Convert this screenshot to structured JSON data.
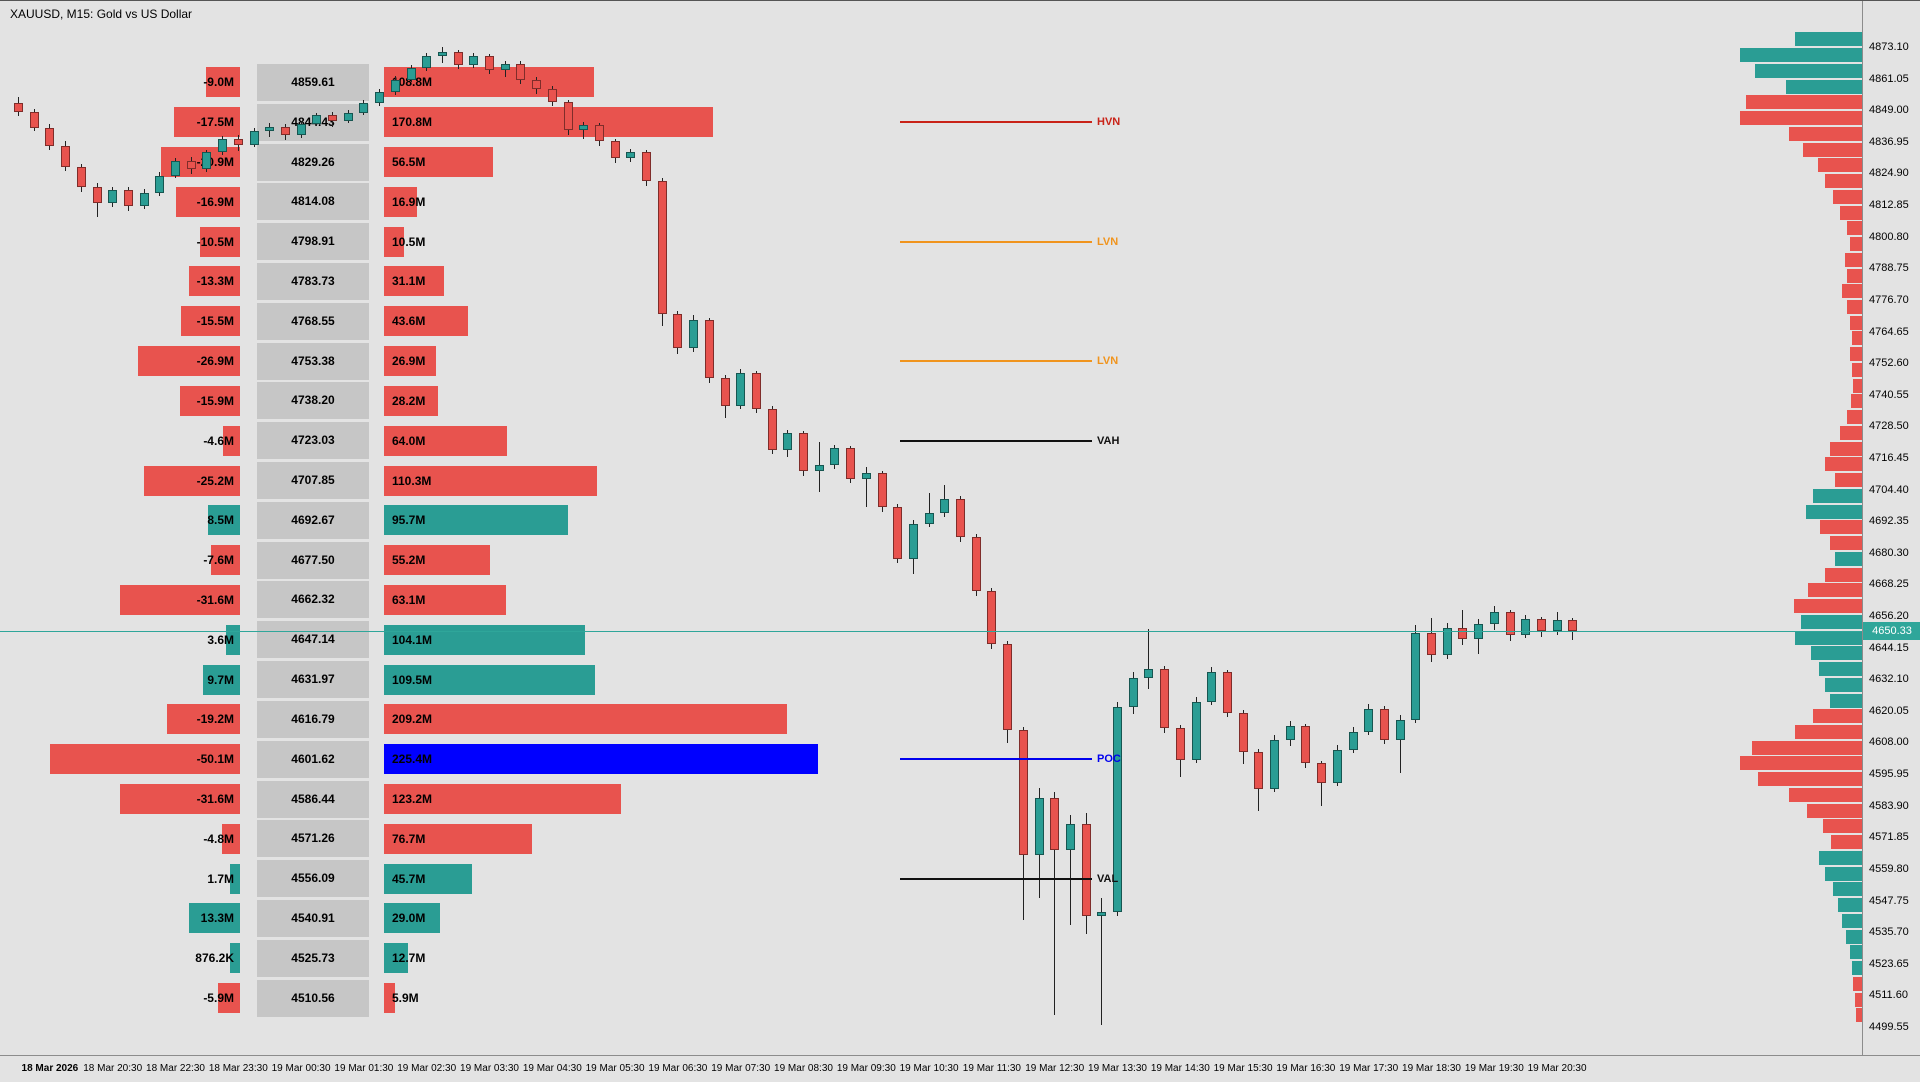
{
  "window": {
    "title": "XAUUSD, M15:  Gold vs US Dollar"
  },
  "colors": {
    "bull": "#2a9d94",
    "bear": "#e8534e",
    "wick": "#222222",
    "poc_bar": "#0000ff",
    "price_cell_bg": "#c6c6c6",
    "background": "#e3e3e3",
    "current_price": "#2fa69a"
  },
  "current_price": {
    "label": "4650.33",
    "value": 4650.33
  },
  "levels": [
    {
      "label": "HVN",
      "price": 4844.43,
      "color": "#c92318"
    },
    {
      "label": "LVN",
      "price": 4798.91,
      "color": "#f0941d"
    },
    {
      "label": "LVN",
      "price": 4753.38,
      "color": "#f0941d"
    },
    {
      "label": "VAH",
      "price": 4723.03,
      "color": "#111111"
    },
    {
      "label": "POC",
      "price": 4601.62,
      "color": "#0000ee"
    },
    {
      "label": "VAL",
      "price": 4556.09,
      "color": "#111111"
    }
  ],
  "price_axis": {
    "top_price": 4873.1,
    "bottom_price": 4499.55,
    "step": 12.05,
    "ticks": [
      "4873.10",
      "4861.05",
      "4849.00",
      "4836.95",
      "4824.90",
      "4812.85",
      "4800.80",
      "4788.75",
      "4776.70",
      "4764.65",
      "4752.60",
      "4740.55",
      "4728.50",
      "4716.45",
      "4704.40",
      "4692.35",
      "4680.30",
      "4668.25",
      "4656.20",
      "4644.15",
      "4632.10",
      "4620.05",
      "4608.00",
      "4595.95",
      "4583.90",
      "4571.85",
      "4559.80",
      "4547.75",
      "4535.70",
      "4523.65",
      "4511.60",
      "4499.55"
    ]
  },
  "time_axis": {
    "labels": [
      "18 Mar 2026",
      "18 Mar 20:30",
      "18 Mar 22:30",
      "18 Mar 23:30",
      "19 Mar 00:30",
      "19 Mar 01:30",
      "19 Mar 02:30",
      "19 Mar 03:30",
      "19 Mar 04:30",
      "19 Mar 05:30",
      "19 Mar 06:30",
      "19 Mar 07:30",
      "19 Mar 08:30",
      "19 Mar 09:30",
      "19 Mar 10:30",
      "19 Mar 11:30",
      "19 Mar 12:30",
      "19 Mar 13:30",
      "19 Mar 14:30",
      "19 Mar 15:30",
      "19 Mar 16:30",
      "19 Mar 17:30",
      "19 Mar 18:30",
      "19 Mar 19:30",
      "19 Mar 20:30"
    ]
  },
  "volume_profile": {
    "rows": [
      {
        "delta": "-9.0M",
        "delta_val": -9.0,
        "price": "4859.61",
        "price_val": 4859.61,
        "volume": "108.8M",
        "vol_val": 108.8,
        "poc": false
      },
      {
        "delta": "-17.5M",
        "delta_val": -17.5,
        "price": "4844.43",
        "price_val": 4844.43,
        "volume": "170.8M",
        "vol_val": 170.8,
        "poc": false
      },
      {
        "delta": "-20.9M",
        "delta_val": -20.9,
        "price": "4829.26",
        "price_val": 4829.26,
        "volume": "56.5M",
        "vol_val": 56.5,
        "poc": false
      },
      {
        "delta": "-16.9M",
        "delta_val": -16.9,
        "price": "4814.08",
        "price_val": 4814.08,
        "volume": "16.9M",
        "vol_val": 16.9,
        "poc": false
      },
      {
        "delta": "-10.5M",
        "delta_val": -10.5,
        "price": "4798.91",
        "price_val": 4798.91,
        "volume": "10.5M",
        "vol_val": 10.5,
        "poc": false
      },
      {
        "delta": "-13.3M",
        "delta_val": -13.3,
        "price": "4783.73",
        "price_val": 4783.73,
        "volume": "31.1M",
        "vol_val": 31.1,
        "poc": false
      },
      {
        "delta": "-15.5M",
        "delta_val": -15.5,
        "price": "4768.55",
        "price_val": 4768.55,
        "volume": "43.6M",
        "vol_val": 43.6,
        "poc": false
      },
      {
        "delta": "-26.9M",
        "delta_val": -26.9,
        "price": "4753.38",
        "price_val": 4753.38,
        "volume": "26.9M",
        "vol_val": 26.9,
        "poc": false
      },
      {
        "delta": "-15.9M",
        "delta_val": -15.9,
        "price": "4738.20",
        "price_val": 4738.2,
        "volume": "28.2M",
        "vol_val": 28.2,
        "poc": false
      },
      {
        "delta": "-4.6M",
        "delta_val": -4.6,
        "price": "4723.03",
        "price_val": 4723.03,
        "volume": "64.0M",
        "vol_val": 64.0,
        "poc": false
      },
      {
        "delta": "-25.2M",
        "delta_val": -25.2,
        "price": "4707.85",
        "price_val": 4707.85,
        "volume": "110.3M",
        "vol_val": 110.3,
        "poc": false
      },
      {
        "delta": "8.5M",
        "delta_val": 8.5,
        "price": "4692.67",
        "price_val": 4692.67,
        "volume": "95.7M",
        "vol_val": 95.7,
        "poc": false
      },
      {
        "delta": "-7.6M",
        "delta_val": -7.6,
        "price": "4677.50",
        "price_val": 4677.5,
        "volume": "55.2M",
        "vol_val": 55.2,
        "poc": false
      },
      {
        "delta": "-31.6M",
        "delta_val": -31.6,
        "price": "4662.32",
        "price_val": 4662.32,
        "volume": "63.1M",
        "vol_val": 63.1,
        "poc": false
      },
      {
        "delta": "3.6M",
        "delta_val": 3.6,
        "price": "4647.14",
        "price_val": 4647.14,
        "volume": "104.1M",
        "vol_val": 104.1,
        "poc": false
      },
      {
        "delta": "9.7M",
        "delta_val": 9.7,
        "price": "4631.97",
        "price_val": 4631.97,
        "volume": "109.5M",
        "vol_val": 109.5,
        "poc": false
      },
      {
        "delta": "-19.2M",
        "delta_val": -19.2,
        "price": "4616.79",
        "price_val": 4616.79,
        "volume": "209.2M",
        "vol_val": 209.2,
        "poc": false
      },
      {
        "delta": "-50.1M",
        "delta_val": -50.1,
        "price": "4601.62",
        "price_val": 4601.62,
        "volume": "225.4M",
        "vol_val": 225.4,
        "poc": true
      },
      {
        "delta": "-31.6M",
        "delta_val": -31.6,
        "price": "4586.44",
        "price_val": 4586.44,
        "volume": "123.2M",
        "vol_val": 123.2,
        "poc": false
      },
      {
        "delta": "-4.8M",
        "delta_val": -4.8,
        "price": "4571.26",
        "price_val": 4571.26,
        "volume": "76.7M",
        "vol_val": 76.7,
        "poc": false
      },
      {
        "delta": "1.7M",
        "delta_val": 1.7,
        "price": "4556.09",
        "price_val": 4556.09,
        "volume": "45.7M",
        "vol_val": 45.7,
        "poc": false
      },
      {
        "delta": "13.3M",
        "delta_val": 13.3,
        "price": "4540.91",
        "price_val": 4540.91,
        "volume": "29.0M",
        "vol_val": 29.0,
        "poc": false
      },
      {
        "delta": "876.2K",
        "delta_val": 0.88,
        "price": "4525.73",
        "price_val": 4525.73,
        "volume": "12.7M",
        "vol_val": 12.7,
        "poc": false
      },
      {
        "delta": "-5.9M",
        "delta_val": -5.9,
        "price": "4510.56",
        "price_val": 4510.56,
        "volume": "5.9M",
        "vol_val": 5.9,
        "poc": false
      }
    ]
  },
  "chart_data": {
    "type": "candlestick",
    "symbol": "XAUUSD",
    "timeframe": "M15",
    "price_range": [
      4499.55,
      4873.1
    ],
    "candles": [
      [
        4851.6,
        4853.9,
        4846.8,
        4848.2
      ],
      [
        4848.2,
        4849.5,
        4840.9,
        4842.4
      ],
      [
        4842.4,
        4843.8,
        4833.9,
        4835.5
      ],
      [
        4835.5,
        4837.1,
        4825.7,
        4827.2
      ],
      [
        4827.2,
        4828.5,
        4817.9,
        4819.6
      ],
      [
        4819.6,
        4821.2,
        4808.3,
        4813.8
      ],
      [
        4813.8,
        4819.9,
        4812.1,
        4818.6
      ],
      [
        4818.6,
        4819.7,
        4810.6,
        4812.5
      ],
      [
        4812.5,
        4818.8,
        4811.2,
        4817.6
      ],
      [
        4817.6,
        4825.3,
        4816.4,
        4824.1
      ],
      [
        4824.1,
        4830.9,
        4823.0,
        4829.7
      ],
      [
        4829.7,
        4831.3,
        4824.8,
        4826.5
      ],
      [
        4826.5,
        4833.8,
        4825.6,
        4832.9
      ],
      [
        4832.9,
        4839.2,
        4831.8,
        4838.0
      ],
      [
        4838.0,
        4839.5,
        4833.6,
        4835.7
      ],
      [
        4835.7,
        4842.1,
        4834.9,
        4841.0
      ],
      [
        4841.0,
        4844.0,
        4838.7,
        4842.6
      ],
      [
        4842.6,
        4843.8,
        4837.5,
        4839.5
      ],
      [
        4839.5,
        4845.0,
        4838.6,
        4843.9
      ],
      [
        4843.9,
        4848.1,
        4842.8,
        4847.0
      ],
      [
        4847.0,
        4848.4,
        4842.7,
        4844.9
      ],
      [
        4844.9,
        4849.2,
        4844.0,
        4848.1
      ],
      [
        4848.1,
        4852.8,
        4847.0,
        4851.7
      ],
      [
        4851.7,
        4857.0,
        4850.6,
        4855.9
      ],
      [
        4855.9,
        4862.1,
        4854.8,
        4860.7
      ],
      [
        4860.7,
        4866.3,
        4859.6,
        4865.2
      ],
      [
        4865.2,
        4871.0,
        4864.1,
        4869.8
      ],
      [
        4869.8,
        4873.1,
        4866.9,
        4871.2
      ],
      [
        4871.2,
        4872.0,
        4864.9,
        4866.4
      ],
      [
        4866.4,
        4870.8,
        4865.2,
        4869.6
      ],
      [
        4869.6,
        4870.4,
        4862.8,
        4864.3
      ],
      [
        4864.3,
        4867.9,
        4861.8,
        4866.7
      ],
      [
        4866.7,
        4867.6,
        4858.9,
        4860.4
      ],
      [
        4860.4,
        4861.6,
        4855.3,
        4857.0
      ],
      [
        4857.0,
        4858.4,
        4850.6,
        4852.1
      ],
      [
        4852.1,
        4853.0,
        4839.6,
        4841.3
      ],
      [
        4841.3,
        4844.7,
        4838.2,
        4843.5
      ],
      [
        4843.5,
        4844.2,
        4835.5,
        4837.1
      ],
      [
        4837.1,
        4838.0,
        4828.9,
        4830.6
      ],
      [
        4830.6,
        4834.1,
        4829.4,
        4833.0
      ],
      [
        4833.0,
        4833.8,
        4820.3,
        4822.0
      ],
      [
        4822.0,
        4823.2,
        4766.8,
        4771.4
      ],
      [
        4771.4,
        4772.6,
        4756.1,
        4758.3
      ],
      [
        4758.3,
        4770.9,
        4756.8,
        4768.9
      ],
      [
        4768.9,
        4769.8,
        4745.2,
        4747.0
      ],
      [
        4747.0,
        4748.1,
        4731.6,
        4736.2
      ],
      [
        4736.2,
        4750.3,
        4735.0,
        4748.8
      ],
      [
        4748.8,
        4749.6,
        4733.4,
        4735.1
      ],
      [
        4735.1,
        4736.3,
        4717.8,
        4719.5
      ],
      [
        4719.5,
        4727.2,
        4716.9,
        4725.8
      ],
      [
        4725.8,
        4726.7,
        4709.6,
        4711.3
      ],
      [
        4711.3,
        4722.4,
        4703.3,
        4713.6
      ],
      [
        4713.6,
        4721.5,
        4712.2,
        4720.1
      ],
      [
        4720.1,
        4721.0,
        4706.8,
        4708.4
      ],
      [
        4708.4,
        4712.9,
        4697.8,
        4710.7
      ],
      [
        4710.7,
        4711.6,
        4695.9,
        4697.6
      ],
      [
        4697.6,
        4698.8,
        4676.4,
        4678.1
      ],
      [
        4678.1,
        4692.9,
        4672.3,
        4691.4
      ],
      [
        4691.4,
        4703.2,
        4690.1,
        4695.3
      ],
      [
        4695.3,
        4706.0,
        4693.8,
        4700.9
      ],
      [
        4700.9,
        4701.8,
        4684.6,
        4686.3
      ],
      [
        4686.3,
        4687.4,
        4663.9,
        4665.6
      ],
      [
        4665.6,
        4666.8,
        4643.7,
        4645.4
      ],
      [
        4645.4,
        4646.5,
        4607.9,
        4612.6
      ],
      [
        4612.6,
        4613.8,
        4540.2,
        4565.1
      ],
      [
        4565.1,
        4590.5,
        4548.7,
        4586.9
      ],
      [
        4586.9,
        4589.0,
        4504.1,
        4567.2
      ],
      [
        4567.2,
        4580.4,
        4538.6,
        4576.8
      ],
      [
        4576.8,
        4581.2,
        4534.9,
        4541.7
      ],
      [
        4541.7,
        4548.9,
        4500.3,
        4543.2
      ],
      [
        4543.2,
        4623.4,
        4541.8,
        4621.6
      ],
      [
        4621.6,
        4635.0,
        4618.9,
        4632.7
      ],
      [
        4632.7,
        4651.2,
        4628.4,
        4636.1
      ],
      [
        4636.1,
        4637.2,
        4611.8,
        4613.5
      ],
      [
        4613.5,
        4614.7,
        4594.9,
        4601.2
      ],
      [
        4601.2,
        4625.3,
        4600.0,
        4623.4
      ],
      [
        4623.4,
        4636.8,
        4622.1,
        4634.9
      ],
      [
        4634.9,
        4635.8,
        4617.6,
        4619.3
      ],
      [
        4619.3,
        4620.4,
        4599.8,
        4604.5
      ],
      [
        4604.5,
        4605.6,
        4581.9,
        4590.3
      ],
      [
        4590.3,
        4610.7,
        4589.1,
        4608.9
      ],
      [
        4608.9,
        4616.2,
        4606.6,
        4614.3
      ],
      [
        4614.3,
        4615.2,
        4598.4,
        4600.1
      ],
      [
        4600.1,
        4601.0,
        4583.7,
        4592.6
      ],
      [
        4592.6,
        4606.9,
        4591.4,
        4605.2
      ],
      [
        4605.2,
        4613.8,
        4603.9,
        4612.1
      ],
      [
        4612.1,
        4622.6,
        4610.8,
        4620.9
      ],
      [
        4620.9,
        4621.8,
        4607.3,
        4609.0
      ],
      [
        4609.0,
        4618.4,
        4596.2,
        4616.7
      ],
      [
        4616.7,
        4652.8,
        4615.5,
        4649.9
      ],
      [
        4649.9,
        4655.3,
        4638.7,
        4641.2
      ],
      [
        4641.2,
        4653.6,
        4640.0,
        4651.8
      ],
      [
        4651.8,
        4658.4,
        4645.1,
        4647.3
      ],
      [
        4647.3,
        4654.9,
        4641.6,
        4653.2
      ],
      [
        4653.2,
        4660.2,
        4650.9,
        4657.6
      ],
      [
        4657.6,
        4658.5,
        4646.8,
        4648.9
      ],
      [
        4648.9,
        4656.7,
        4647.7,
        4655.1
      ],
      [
        4655.1,
        4656.0,
        4648.2,
        4650.4
      ],
      [
        4650.4,
        4657.9,
        4649.1,
        4654.6
      ],
      [
        4654.6,
        4655.5,
        4647.0,
        4650.33
      ]
    ],
    "right_profile": [
      [
        4876,
        67,
        "b"
      ],
      [
        4870,
        122,
        "b"
      ],
      [
        4864,
        107,
        "b"
      ],
      [
        4858,
        76,
        "b"
      ],
      [
        4852,
        116,
        "s"
      ],
      [
        4846,
        122,
        "s"
      ],
      [
        4840,
        73,
        "s"
      ],
      [
        4834,
        59,
        "s"
      ],
      [
        4828,
        44,
        "s"
      ],
      [
        4822,
        37,
        "s"
      ],
      [
        4816,
        29,
        "s"
      ],
      [
        4810,
        22,
        "s"
      ],
      [
        4804,
        15,
        "s"
      ],
      [
        4798,
        12,
        "s"
      ],
      [
        4792,
        17,
        "s"
      ],
      [
        4786,
        15,
        "s"
      ],
      [
        4780,
        20,
        "s"
      ],
      [
        4774,
        15,
        "s"
      ],
      [
        4768,
        12,
        "s"
      ],
      [
        4762,
        10,
        "s"
      ],
      [
        4756,
        12,
        "s"
      ],
      [
        4750,
        10,
        "s"
      ],
      [
        4744,
        9,
        "s"
      ],
      [
        4738,
        11,
        "s"
      ],
      [
        4732,
        15,
        "s"
      ],
      [
        4726,
        22,
        "s"
      ],
      [
        4720,
        32,
        "s"
      ],
      [
        4714,
        37,
        "s"
      ],
      [
        4708,
        27,
        "s"
      ],
      [
        4702,
        49,
        "b"
      ],
      [
        4696,
        56,
        "b"
      ],
      [
        4690,
        42,
        "s"
      ],
      [
        4684,
        32,
        "s"
      ],
      [
        4678,
        27,
        "b"
      ],
      [
        4672,
        37,
        "s"
      ],
      [
        4666,
        54,
        "s"
      ],
      [
        4660,
        68,
        "s"
      ],
      [
        4654,
        61,
        "b"
      ],
      [
        4648,
        67,
        "b"
      ],
      [
        4642,
        51,
        "b"
      ],
      [
        4636,
        43,
        "b"
      ],
      [
        4630,
        37,
        "b"
      ],
      [
        4624,
        32,
        "b"
      ],
      [
        4618,
        49,
        "s"
      ],
      [
        4612,
        67,
        "s"
      ],
      [
        4606,
        110,
        "s"
      ],
      [
        4600,
        122,
        "s"
      ],
      [
        4594,
        104,
        "s"
      ],
      [
        4588,
        73,
        "s"
      ],
      [
        4582,
        55,
        "s"
      ],
      [
        4576,
        39,
        "s"
      ],
      [
        4570,
        31,
        "s"
      ],
      [
        4564,
        43,
        "b"
      ],
      [
        4558,
        37,
        "b"
      ],
      [
        4552,
        29,
        "b"
      ],
      [
        4546,
        24,
        "b"
      ],
      [
        4540,
        20,
        "b"
      ],
      [
        4534,
        16,
        "b"
      ],
      [
        4528,
        12,
        "b"
      ],
      [
        4522,
        10,
        "b"
      ],
      [
        4516,
        9,
        "s"
      ],
      [
        4510,
        7,
        "s"
      ],
      [
        4504,
        6,
        "s"
      ]
    ]
  }
}
